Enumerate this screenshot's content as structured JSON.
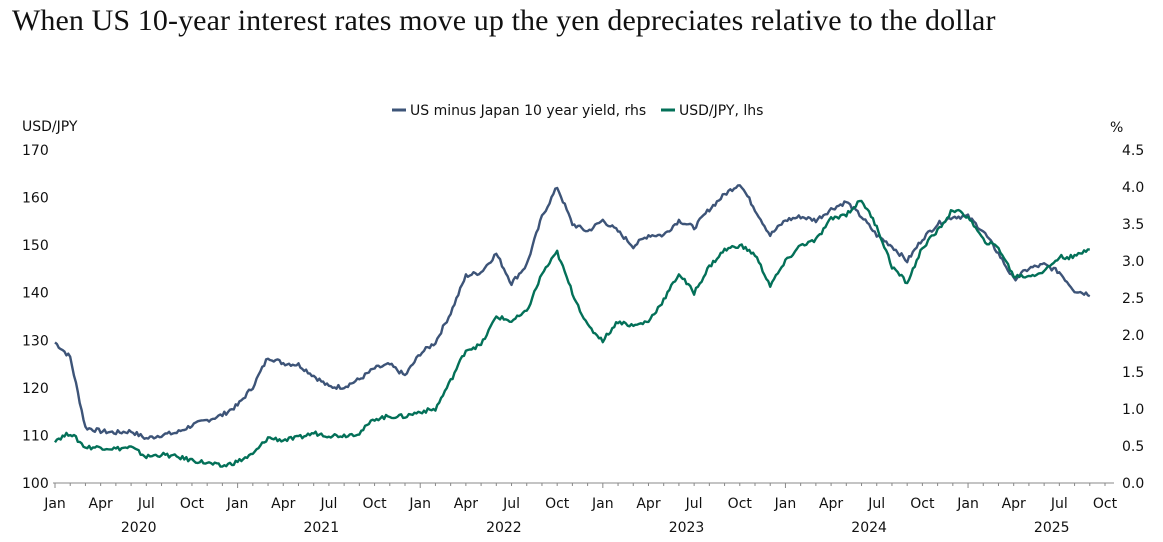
{
  "title": "When US 10-year interest rates move up the yen depreciates relative to the dollar",
  "chart_data": {
    "type": "line",
    "title": "When US 10-year interest rates move up the yen depreciates relative to the dollar",
    "left_axis": {
      "label": "USD/JPY",
      "ylim": [
        100,
        170
      ],
      "ticks": [
        "100",
        "110",
        "120",
        "130",
        "140",
        "150",
        "160",
        "170"
      ]
    },
    "right_axis": {
      "label": "%",
      "ylim": [
        0.0,
        4.5
      ],
      "ticks": [
        "0.0",
        "0.5",
        "1.0",
        "1.5",
        "2.0",
        "2.5",
        "3.0",
        "3.5",
        "4.0",
        "4.5"
      ]
    },
    "x_month_ticks": [
      "Jan",
      "Apr",
      "Jul",
      "Oct",
      "Jan",
      "Apr",
      "Jul",
      "Oct",
      "Jan",
      "Apr",
      "Jul",
      "Oct",
      "Jan",
      "Apr",
      "Jul",
      "Oct",
      "Jan",
      "Apr",
      "Jul",
      "Oct",
      "Jan",
      "Apr",
      "Jul",
      "Oct"
    ],
    "x_year_labels": [
      "2020",
      "2021",
      "2022",
      "2023",
      "2024",
      "2025"
    ],
    "x_range": [
      "2020-01",
      "2025-10"
    ],
    "grid": false,
    "legend": "top-center",
    "series": [
      {
        "name": "US minus Japan 10 year yield, rhs",
        "axis": "right",
        "color": "#3d5478",
        "x": [
          "2020-01",
          "2020-02",
          "2020-03",
          "2020-04",
          "2020-05",
          "2020-06",
          "2020-07",
          "2020-08",
          "2020-09",
          "2020-10",
          "2020-11",
          "2020-12",
          "2021-01",
          "2021-02",
          "2021-03",
          "2021-04",
          "2021-05",
          "2021-06",
          "2021-07",
          "2021-08",
          "2021-09",
          "2021-10",
          "2021-11",
          "2021-12",
          "2022-01",
          "2022-02",
          "2022-03",
          "2022-04",
          "2022-05",
          "2022-06",
          "2022-07",
          "2022-08",
          "2022-09",
          "2022-10",
          "2022-11",
          "2022-12",
          "2023-01",
          "2023-02",
          "2023-03",
          "2023-04",
          "2023-05",
          "2023-06",
          "2023-07",
          "2023-08",
          "2023-09",
          "2023-10",
          "2023-11",
          "2023-12",
          "2024-01",
          "2024-02",
          "2024-03",
          "2024-04",
          "2024-05",
          "2024-06",
          "2024-07",
          "2024-08",
          "2024-09",
          "2024-10",
          "2024-11",
          "2024-12",
          "2025-01",
          "2025-02",
          "2025-03",
          "2025-04",
          "2025-05",
          "2025-06",
          "2025-07",
          "2025-08",
          "2025-09"
        ],
        "values": [
          1.9,
          1.7,
          0.75,
          0.7,
          0.68,
          0.7,
          0.6,
          0.65,
          0.68,
          0.78,
          0.85,
          0.92,
          1.05,
          1.3,
          1.7,
          1.62,
          1.6,
          1.45,
          1.3,
          1.3,
          1.4,
          1.55,
          1.6,
          1.45,
          1.75,
          1.9,
          2.3,
          2.8,
          2.85,
          3.1,
          2.7,
          2.95,
          3.6,
          4.0,
          3.5,
          3.4,
          3.55,
          3.4,
          3.2,
          3.35,
          3.35,
          3.55,
          3.45,
          3.7,
          3.9,
          4.05,
          3.7,
          3.35,
          3.55,
          3.6,
          3.55,
          3.7,
          3.8,
          3.6,
          3.35,
          3.2,
          3.0,
          3.3,
          3.5,
          3.6,
          3.6,
          3.4,
          3.1,
          2.75,
          2.9,
          2.95,
          2.85,
          2.6,
          2.55
        ]
      },
      {
        "name": "USD/JPY, lhs",
        "axis": "left",
        "color": "#037058",
        "x": [
          "2020-01",
          "2020-02",
          "2020-03",
          "2020-04",
          "2020-05",
          "2020-06",
          "2020-07",
          "2020-08",
          "2020-09",
          "2020-10",
          "2020-11",
          "2020-12",
          "2021-01",
          "2021-02",
          "2021-03",
          "2021-04",
          "2021-05",
          "2021-06",
          "2021-07",
          "2021-08",
          "2021-09",
          "2021-10",
          "2021-11",
          "2021-12",
          "2022-01",
          "2022-02",
          "2022-03",
          "2022-04",
          "2022-05",
          "2022-06",
          "2022-07",
          "2022-08",
          "2022-09",
          "2022-10",
          "2022-11",
          "2022-12",
          "2023-01",
          "2023-02",
          "2023-03",
          "2023-04",
          "2023-05",
          "2023-06",
          "2023-07",
          "2023-08",
          "2023-09",
          "2023-10",
          "2023-11",
          "2023-12",
          "2024-01",
          "2024-02",
          "2024-03",
          "2024-04",
          "2024-05",
          "2024-06",
          "2024-07",
          "2024-08",
          "2024-09",
          "2024-10",
          "2024-11",
          "2024-12",
          "2025-01",
          "2025-02",
          "2025-03",
          "2025-04",
          "2025-05",
          "2025-06",
          "2025-07",
          "2025-08",
          "2025-09"
        ],
        "values": [
          109.0,
          110.5,
          107.5,
          107.5,
          107.2,
          107.5,
          105.5,
          106.0,
          105.5,
          104.8,
          104.2,
          103.5,
          104.5,
          106.0,
          109.5,
          109.0,
          109.5,
          110.5,
          110.0,
          110.0,
          110.5,
          113.5,
          114.0,
          114.0,
          115.0,
          115.5,
          121.5,
          128.0,
          129.0,
          135.0,
          134.0,
          136.0,
          144.0,
          148.5,
          140.0,
          133.0,
          130.0,
          134.0,
          133.0,
          134.0,
          138.5,
          144.0,
          140.0,
          145.5,
          149.0,
          150.0,
          148.0,
          141.5,
          146.5,
          150.0,
          151.0,
          155.5,
          156.5,
          159.5,
          154.0,
          145.5,
          142.0,
          149.5,
          153.0,
          157.5,
          156.0,
          151.0,
          149.5,
          143.5,
          143.5,
          144.5,
          147.5,
          147.5,
          149.5
        ]
      }
    ]
  }
}
